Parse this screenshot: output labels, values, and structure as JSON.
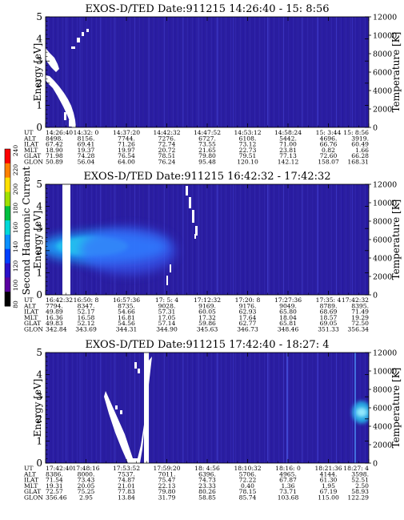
{
  "colors": {
    "background": "#2b1fa0",
    "mid": "#3a3fd8",
    "high": "#27b3e8",
    "saturated": "#ffffff"
  },
  "colorbar": {
    "label": "Second Harmonic Current",
    "ticks": [
      "80",
      "100",
      "120",
      "140",
      "160",
      "180",
      "200",
      "220",
      "240"
    ],
    "colors": [
      "#000000",
      "#5a00a0",
      "#2a10c8",
      "#0040ff",
      "#0a90ff",
      "#00d8d8",
      "#00c040",
      "#a0e000",
      "#ffe000",
      "#ff8000",
      "#ff0000"
    ]
  },
  "chart_data": [
    {
      "type": "heatmap",
      "title": "EXOS-D/TED   Date:911215  14:26:40 - 15: 8:56",
      "ylabel": "Energy [eV]",
      "ylabel_right": "Temperature [K]",
      "ylim": [
        0,
        5
      ],
      "y_ticks": [
        "0",
        "1",
        "2",
        "3",
        "4",
        "5"
      ],
      "ylim_right": [
        0,
        12000
      ],
      "y_ticks_right": [
        "0",
        "2000",
        "4000",
        "6000",
        "8000",
        "10000",
        "12000"
      ],
      "row_labels": [
        "UT",
        "ALT",
        "ILAT",
        "MLT",
        "GLAT",
        "GLON"
      ],
      "columns": [
        [
          "14:26:40",
          "8498.",
          "67.42",
          "18.90",
          "71.98",
          "50.89"
        ],
        [
          "14:32: 0",
          "8156.",
          "69.41",
          "19.37",
          "74.28",
          "56.04"
        ],
        [
          "14:37:20",
          "7744.",
          "71.26",
          "19.97",
          "76.54",
          "64.00"
        ],
        [
          "14:42:32",
          "7276.",
          "72.74",
          "20.72",
          "78.51",
          "76.24"
        ],
        [
          "14:47:52",
          "6727.",
          "73.55",
          "21.65",
          "79.80",
          "95.48"
        ],
        [
          "14:53:12",
          "6108.",
          "73.12",
          "22.73",
          "79.51",
          "120.10"
        ],
        [
          "14:58:24",
          "5442.",
          "71.00",
          "23.81",
          "77.13",
          "142.12"
        ],
        [
          "15: 3:44",
          "4696.",
          "66.76",
          "0.82",
          "72.60",
          "158.07"
        ],
        [
          "15: 8:56",
          "3919.",
          "60.49",
          "1.66",
          "66.28",
          "168.31"
        ]
      ]
    },
    {
      "type": "heatmap",
      "title": "EXOS-D/TED   Date:911215  16:42:32 - 17:42:32",
      "ylabel": "Energy [eV]",
      "ylabel_right": "Temperature [K]",
      "ylim": [
        0,
        5
      ],
      "y_ticks": [
        "0",
        "1",
        "2",
        "3",
        "4",
        "5"
      ],
      "ylim_right": [
        0,
        12000
      ],
      "y_ticks_right": [
        "0",
        "2000",
        "4000",
        "6000",
        "8000",
        "10000",
        "12000"
      ],
      "row_labels": [
        "UT",
        "ALT",
        "ILAT",
        "MLT",
        "GLAT",
        "GLON"
      ],
      "columns": [
        [
          "16:42:32",
          "7794.",
          "49.89",
          "16.36",
          "49.83",
          "342.84"
        ],
        [
          "16:50: 8",
          "8347.",
          "52.17",
          "16.58",
          "52.12",
          "343.69"
        ],
        [
          "16:57:36",
          "8735.",
          "54.66",
          "16.81",
          "54.56",
          "344.31"
        ],
        [
          "17: 5: 4",
          "9028.",
          "57.31",
          "17.05",
          "57.14",
          "344.90"
        ],
        [
          "17:12:32",
          "9169.",
          "60.05",
          "17.32",
          "59.86",
          "345.63"
        ],
        [
          "17:20: 8",
          "9176.",
          "62.93",
          "17.64",
          "62.77",
          "346.73"
        ],
        [
          "17:27:36",
          "9049.",
          "65.80",
          "18.04",
          "65.81",
          "348.46"
        ],
        [
          "17:35: 4",
          "8789.",
          "68.69",
          "18.57",
          "69.05",
          "351.33"
        ],
        [
          "17:42:32",
          "8395.",
          "71.49",
          "19.29",
          "72.50",
          "356.34"
        ]
      ]
    },
    {
      "type": "heatmap",
      "title": "EXOS-D/TED   Date:911215  17:42:40 - 18:27: 4",
      "ylabel": "Energy [eV]",
      "ylabel_right": "Temperature [K]",
      "ylim": [
        0,
        5
      ],
      "y_ticks": [
        "0",
        "1",
        "2",
        "3",
        "4",
        "5"
      ],
      "ylim_right": [
        0,
        12000
      ],
      "y_ticks_right": [
        "0",
        "2000",
        "4000",
        "6000",
        "8000",
        "10000",
        "12000"
      ],
      "row_labels": [
        "UT",
        "ALT",
        "ILAT",
        "MLT",
        "GLAT",
        "GLON"
      ],
      "columns": [
        [
          "17:42:40",
          "8386.",
          "71.54",
          "19.31",
          "72.57",
          "356.46"
        ],
        [
          "17:48:16",
          "8000.",
          "73.43",
          "20.05",
          "75.25",
          "2.95"
        ],
        [
          "17:53:52",
          "7537.",
          "74.87",
          "21.01",
          "77.83",
          "13.84"
        ],
        [
          "17:59:20",
          "7011.",
          "75.47",
          "22.13",
          "79.80",
          "31.79"
        ],
        [
          "18: 4:56",
          "6396.",
          "74.73",
          "23.33",
          "80.26",
          "58.85"
        ],
        [
          "18:10:32",
          "5706.",
          "72.22",
          "0.40",
          "78.15",
          "85.74"
        ],
        [
          "18:16: 0",
          "4965.",
          "67.87",
          "1.36",
          "73.71",
          "103.68"
        ],
        [
          "18:21:36",
          "4144.",
          "61.30",
          "1.95",
          "67.19",
          "115.00"
        ],
        [
          "18:27: 4",
          "3598.",
          "52.51",
          "2.50",
          "58.93",
          "122.29"
        ]
      ]
    }
  ]
}
